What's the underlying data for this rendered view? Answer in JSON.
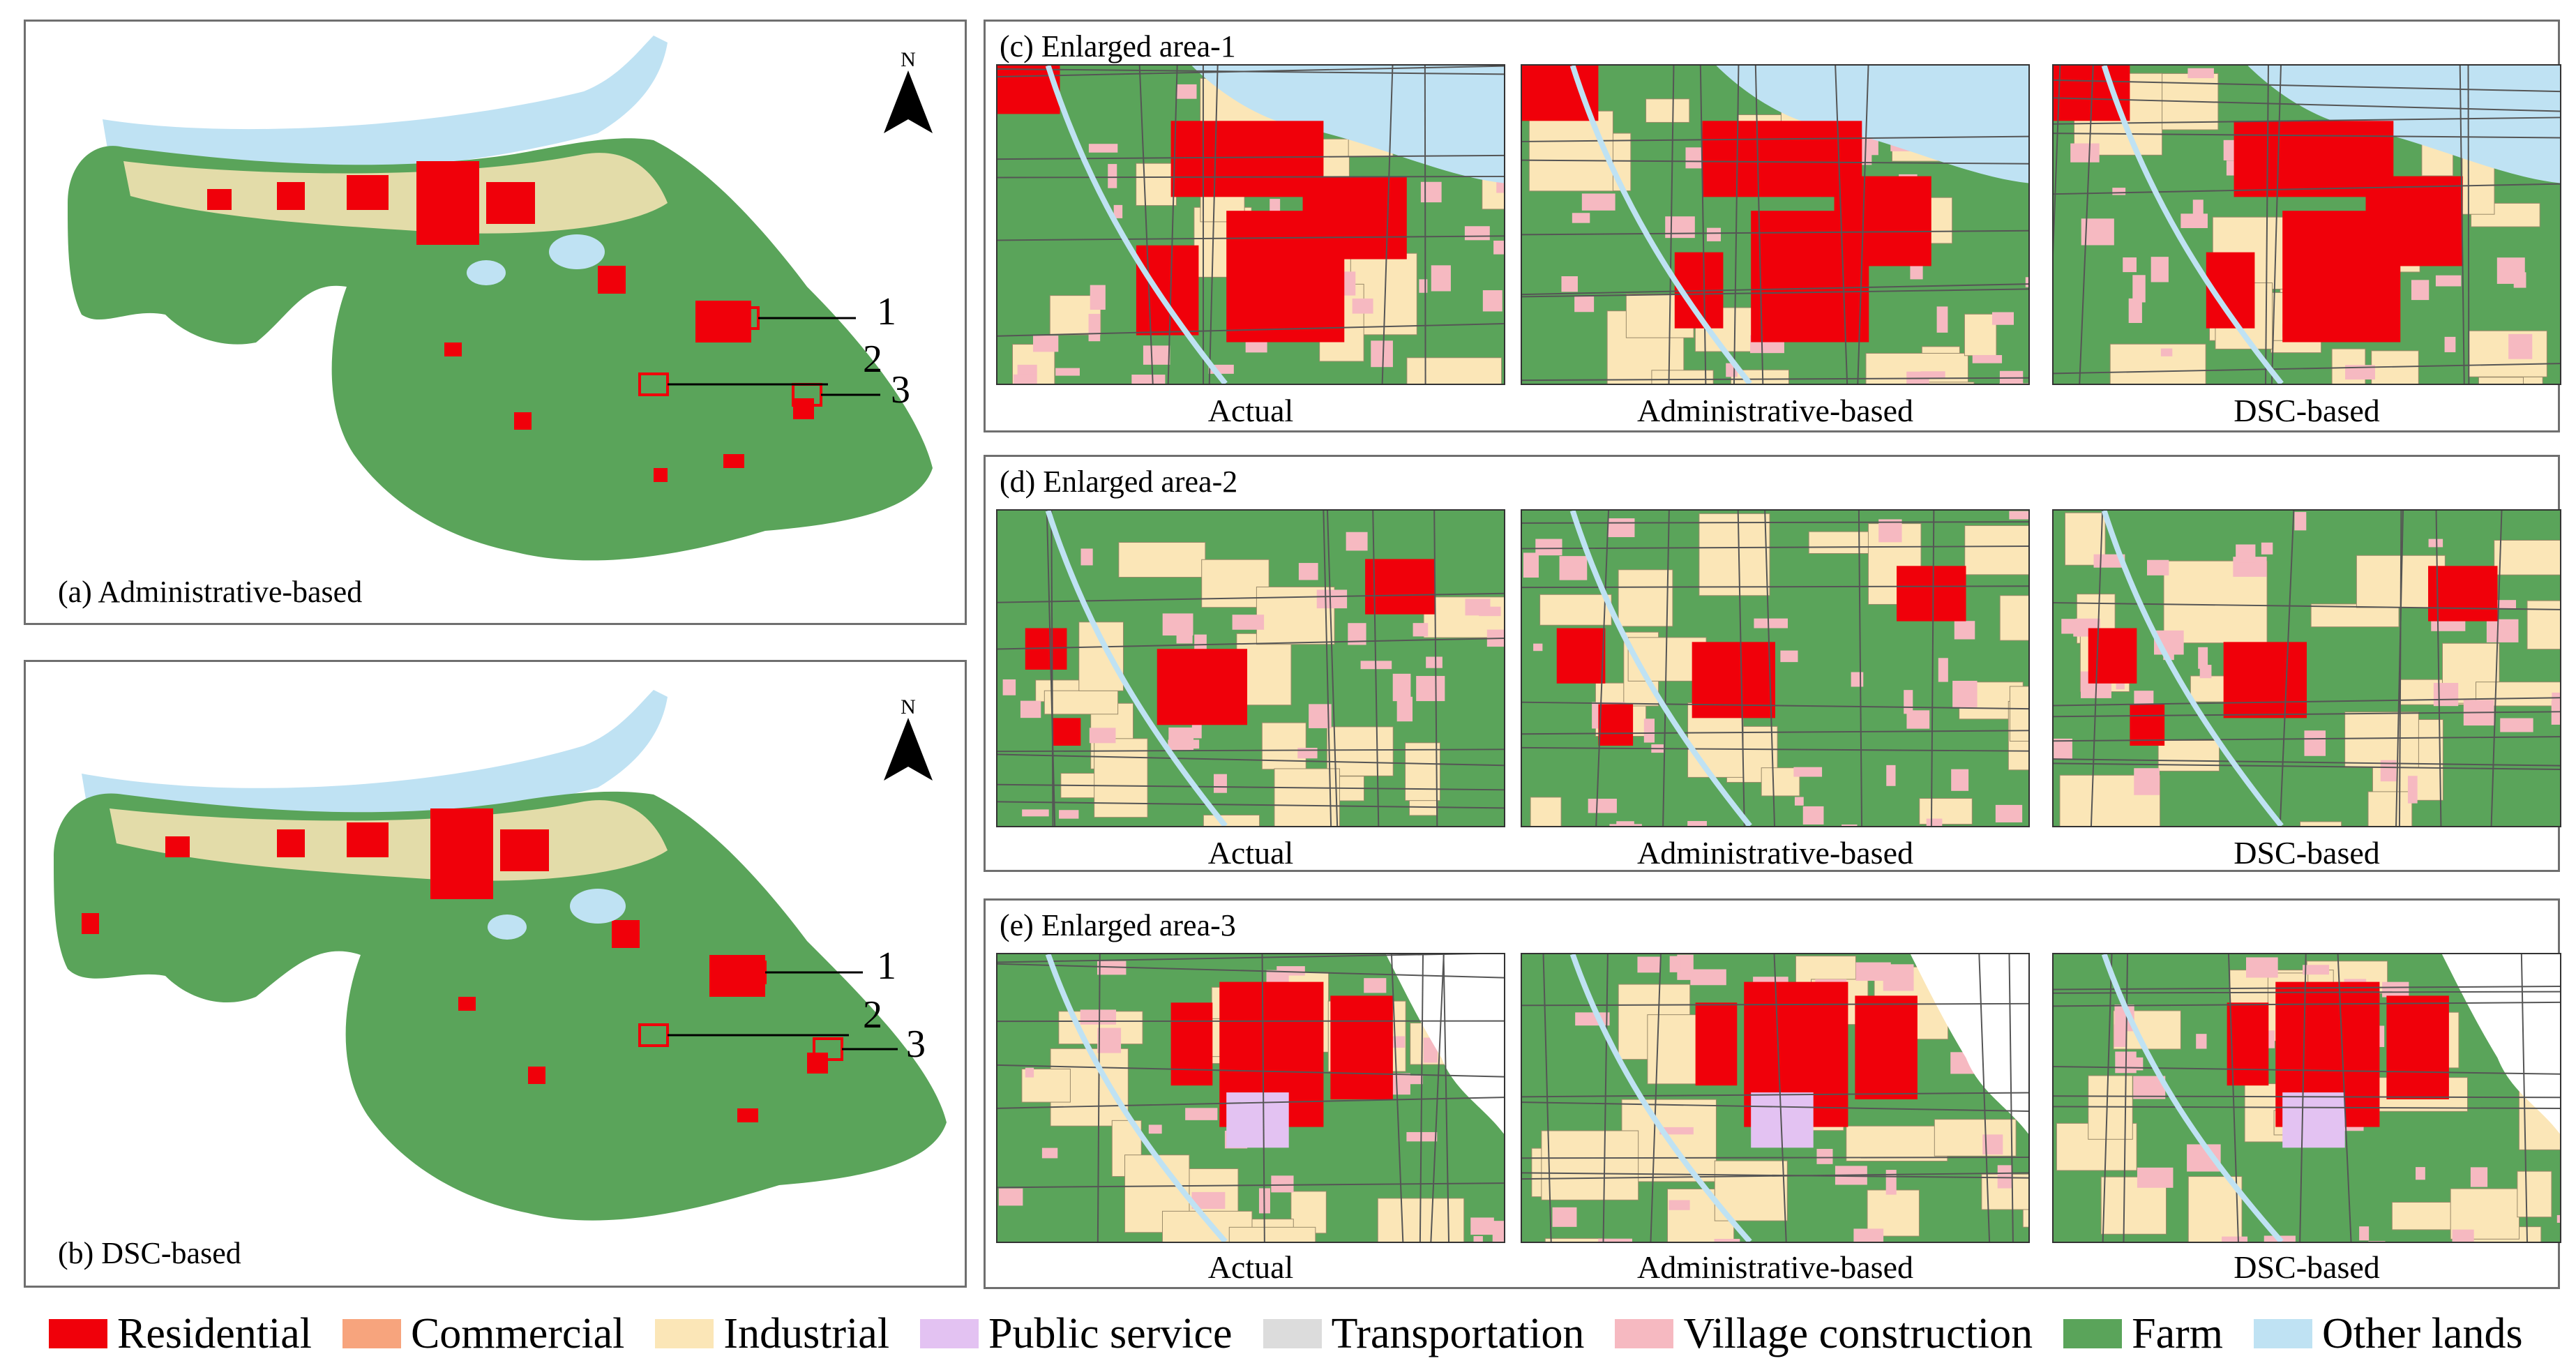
{
  "colors": {
    "residential": "#f0000a",
    "commercial": "#f7a47d",
    "industrial": "#fbe6b7",
    "public_service": "#e3c2f2",
    "transportation": "#dcdcdc",
    "village_construction": "#f6b9c1",
    "farm": "#5aa45a",
    "other_lands": "#bfe2f3"
  },
  "panels": {
    "a": {
      "label": "(a) Administrative-based",
      "north": "N",
      "areas": [
        "1",
        "2",
        "3"
      ]
    },
    "b": {
      "label": "(b) DSC-based",
      "north": "N",
      "areas": [
        "1",
        "2",
        "3"
      ]
    },
    "c": {
      "label": "(c) Enlarged area-1"
    },
    "d": {
      "label": "(d) Enlarged area-2"
    },
    "e": {
      "label": "(e) Enlarged area-3"
    }
  },
  "sub_captions": [
    "Actual",
    "Administrative-based",
    "DSC-based"
  ],
  "legend": [
    {
      "key": "residential",
      "label": "Residential",
      "color": "#f0000a"
    },
    {
      "key": "commercial",
      "label": "Commercial",
      "color": "#f7a47d"
    },
    {
      "key": "industrial",
      "label": "Industrial",
      "color": "#fbe6b7"
    },
    {
      "key": "public_service",
      "label": "Public service",
      "color": "#e3c2f2"
    },
    {
      "key": "transportation",
      "label": "Transportation",
      "color": "#dcdcdc"
    },
    {
      "key": "village_construction",
      "label": "Village construction",
      "color": "#f6b9c1"
    },
    {
      "key": "farm",
      "label": "Farm",
      "color": "#5aa45a"
    },
    {
      "key": "other_lands",
      "label": "Other lands",
      "color": "#bfe2f3"
    }
  ]
}
